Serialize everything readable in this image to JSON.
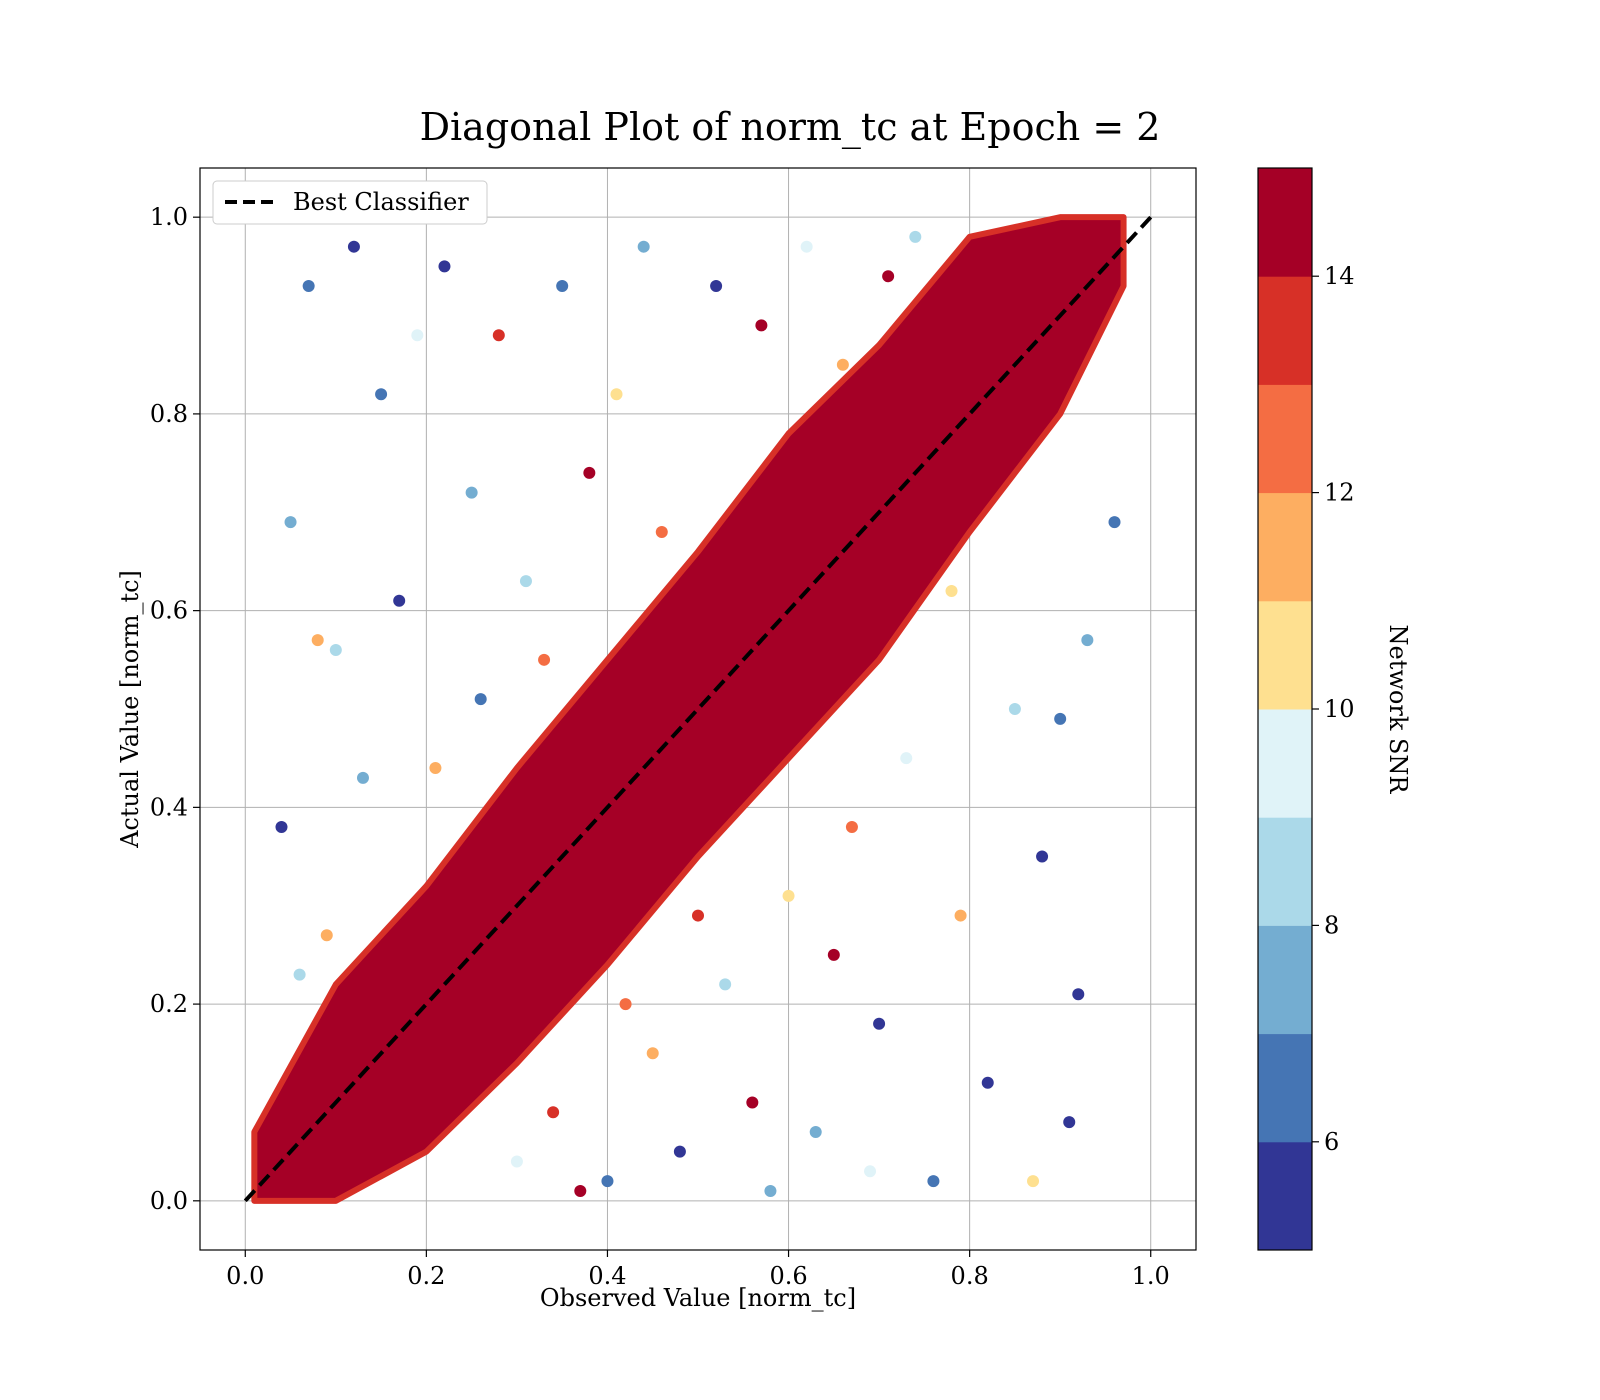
{
  "chart_data": {
    "type": "scatter",
    "title": "Diagonal Plot of norm_tc at Epoch = 2",
    "xlabel": "Observed Value [norm_tc]",
    "ylabel": "Actual Value [norm_tc]",
    "xlim": [
      -0.05,
      1.05
    ],
    "ylim": [
      -0.05,
      1.05
    ],
    "xticks": [
      "0.0",
      "0.2",
      "0.4",
      "0.6",
      "0.8",
      "1.0"
    ],
    "yticks": [
      "0.0",
      "0.2",
      "0.4",
      "0.6",
      "0.8",
      "1.0"
    ],
    "xtick_values": [
      0.0,
      0.2,
      0.4,
      0.6,
      0.8,
      1.0
    ],
    "ytick_values": [
      0.0,
      0.2,
      0.4,
      0.6,
      0.8,
      1.0
    ],
    "grid": true,
    "legend": {
      "placement": "upper-left",
      "entries": [
        {
          "label": "Best Classifier",
          "style": "dashed",
          "color": "#000000"
        }
      ]
    },
    "reference_line": {
      "label": "Best Classifier",
      "x": [
        0.0,
        1.0
      ],
      "y": [
        0.0,
        1.0
      ],
      "color": "#000000",
      "style": "dashed"
    },
    "band": {
      "description_color_value": 15,
      "points_lower": [
        [
          0.01,
          0.0
        ],
        [
          0.1,
          0.0
        ],
        [
          0.2,
          0.05
        ],
        [
          0.3,
          0.14
        ],
        [
          0.4,
          0.24
        ],
        [
          0.5,
          0.35
        ],
        [
          0.6,
          0.45
        ],
        [
          0.7,
          0.55
        ],
        [
          0.8,
          0.68
        ],
        [
          0.9,
          0.8
        ],
        [
          0.97,
          0.93
        ]
      ],
      "points_upper": [
        [
          0.01,
          0.07
        ],
        [
          0.1,
          0.22
        ],
        [
          0.2,
          0.32
        ],
        [
          0.3,
          0.44
        ],
        [
          0.4,
          0.55
        ],
        [
          0.5,
          0.66
        ],
        [
          0.6,
          0.78
        ],
        [
          0.7,
          0.87
        ],
        [
          0.8,
          0.98
        ],
        [
          0.9,
          1.0
        ],
        [
          0.97,
          1.0
        ]
      ]
    },
    "points": [
      {
        "x": 0.07,
        "y": 0.93,
        "snr": 6
      },
      {
        "x": 0.05,
        "y": 0.69,
        "snr": 7
      },
      {
        "x": 0.04,
        "y": 0.38,
        "snr": 5
      },
      {
        "x": 0.12,
        "y": 0.97,
        "snr": 5
      },
      {
        "x": 0.1,
        "y": 0.56,
        "snr": 8
      },
      {
        "x": 0.08,
        "y": 0.57,
        "snr": 11
      },
      {
        "x": 0.15,
        "y": 0.82,
        "snr": 6
      },
      {
        "x": 0.19,
        "y": 0.88,
        "snr": 9
      },
      {
        "x": 0.22,
        "y": 0.95,
        "snr": 5
      },
      {
        "x": 0.25,
        "y": 0.72,
        "snr": 7
      },
      {
        "x": 0.28,
        "y": 0.88,
        "snr": 13
      },
      {
        "x": 0.31,
        "y": 0.63,
        "snr": 8
      },
      {
        "x": 0.35,
        "y": 0.93,
        "snr": 6
      },
      {
        "x": 0.38,
        "y": 0.74,
        "snr": 15
      },
      {
        "x": 0.41,
        "y": 0.82,
        "snr": 10
      },
      {
        "x": 0.44,
        "y": 0.97,
        "snr": 7
      },
      {
        "x": 0.46,
        "y": 0.68,
        "snr": 12
      },
      {
        "x": 0.52,
        "y": 0.93,
        "snr": 5
      },
      {
        "x": 0.57,
        "y": 0.89,
        "snr": 14
      },
      {
        "x": 0.62,
        "y": 0.97,
        "snr": 9
      },
      {
        "x": 0.66,
        "y": 0.85,
        "snr": 11
      },
      {
        "x": 0.71,
        "y": 0.94,
        "snr": 15
      },
      {
        "x": 0.74,
        "y": 0.98,
        "snr": 8
      },
      {
        "x": 0.17,
        "y": 0.61,
        "snr": 5
      },
      {
        "x": 0.21,
        "y": 0.44,
        "snr": 11
      },
      {
        "x": 0.26,
        "y": 0.51,
        "snr": 6
      },
      {
        "x": 0.13,
        "y": 0.43,
        "snr": 7
      },
      {
        "x": 0.33,
        "y": 0.55,
        "snr": 12
      },
      {
        "x": 0.09,
        "y": 0.27,
        "snr": 11
      },
      {
        "x": 0.06,
        "y": 0.23,
        "snr": 8
      },
      {
        "x": 0.3,
        "y": 0.04,
        "snr": 9
      },
      {
        "x": 0.34,
        "y": 0.09,
        "snr": 13
      },
      {
        "x": 0.4,
        "y": 0.02,
        "snr": 6
      },
      {
        "x": 0.45,
        "y": 0.15,
        "snr": 11
      },
      {
        "x": 0.48,
        "y": 0.05,
        "snr": 5
      },
      {
        "x": 0.53,
        "y": 0.22,
        "snr": 8
      },
      {
        "x": 0.56,
        "y": 0.1,
        "snr": 15
      },
      {
        "x": 0.6,
        "y": 0.31,
        "snr": 10
      },
      {
        "x": 0.63,
        "y": 0.07,
        "snr": 7
      },
      {
        "x": 0.67,
        "y": 0.38,
        "snr": 12
      },
      {
        "x": 0.7,
        "y": 0.18,
        "snr": 5
      },
      {
        "x": 0.73,
        "y": 0.45,
        "snr": 9
      },
      {
        "x": 0.76,
        "y": 0.02,
        "snr": 6
      },
      {
        "x": 0.79,
        "y": 0.29,
        "snr": 11
      },
      {
        "x": 0.82,
        "y": 0.12,
        "snr": 5
      },
      {
        "x": 0.85,
        "y": 0.5,
        "snr": 8
      },
      {
        "x": 0.88,
        "y": 0.35,
        "snr": 5
      },
      {
        "x": 0.9,
        "y": 0.49,
        "snr": 6
      },
      {
        "x": 0.92,
        "y": 0.21,
        "snr": 5
      },
      {
        "x": 0.93,
        "y": 0.57,
        "snr": 7
      },
      {
        "x": 0.96,
        "y": 0.69,
        "snr": 6
      },
      {
        "x": 0.87,
        "y": 0.02,
        "snr": 10
      },
      {
        "x": 0.91,
        "y": 0.08,
        "snr": 5
      },
      {
        "x": 0.78,
        "y": 0.62,
        "snr": 10
      },
      {
        "x": 0.65,
        "y": 0.25,
        "snr": 14
      },
      {
        "x": 0.5,
        "y": 0.29,
        "snr": 13
      },
      {
        "x": 0.42,
        "y": 0.2,
        "snr": 12
      },
      {
        "x": 0.37,
        "y": 0.01,
        "snr": 15
      },
      {
        "x": 0.58,
        "y": 0.01,
        "snr": 7
      },
      {
        "x": 0.69,
        "y": 0.03,
        "snr": 9
      }
    ]
  },
  "colorbar": {
    "label": "Network SNR",
    "ticks": [
      "6",
      "8",
      "10",
      "12",
      "14"
    ],
    "tick_values": [
      6,
      8,
      10,
      12,
      14
    ],
    "range": [
      5,
      15
    ],
    "colors": [
      "#313695",
      "#4575b4",
      "#74add1",
      "#abd9e9",
      "#e0f3f8",
      "#fee090",
      "#fdae61",
      "#f46d43",
      "#d73027",
      "#a50026"
    ]
  },
  "styles": {
    "band_color": "#a50026",
    "grid_color": "#b0b0b0",
    "line_color": "#000000"
  }
}
